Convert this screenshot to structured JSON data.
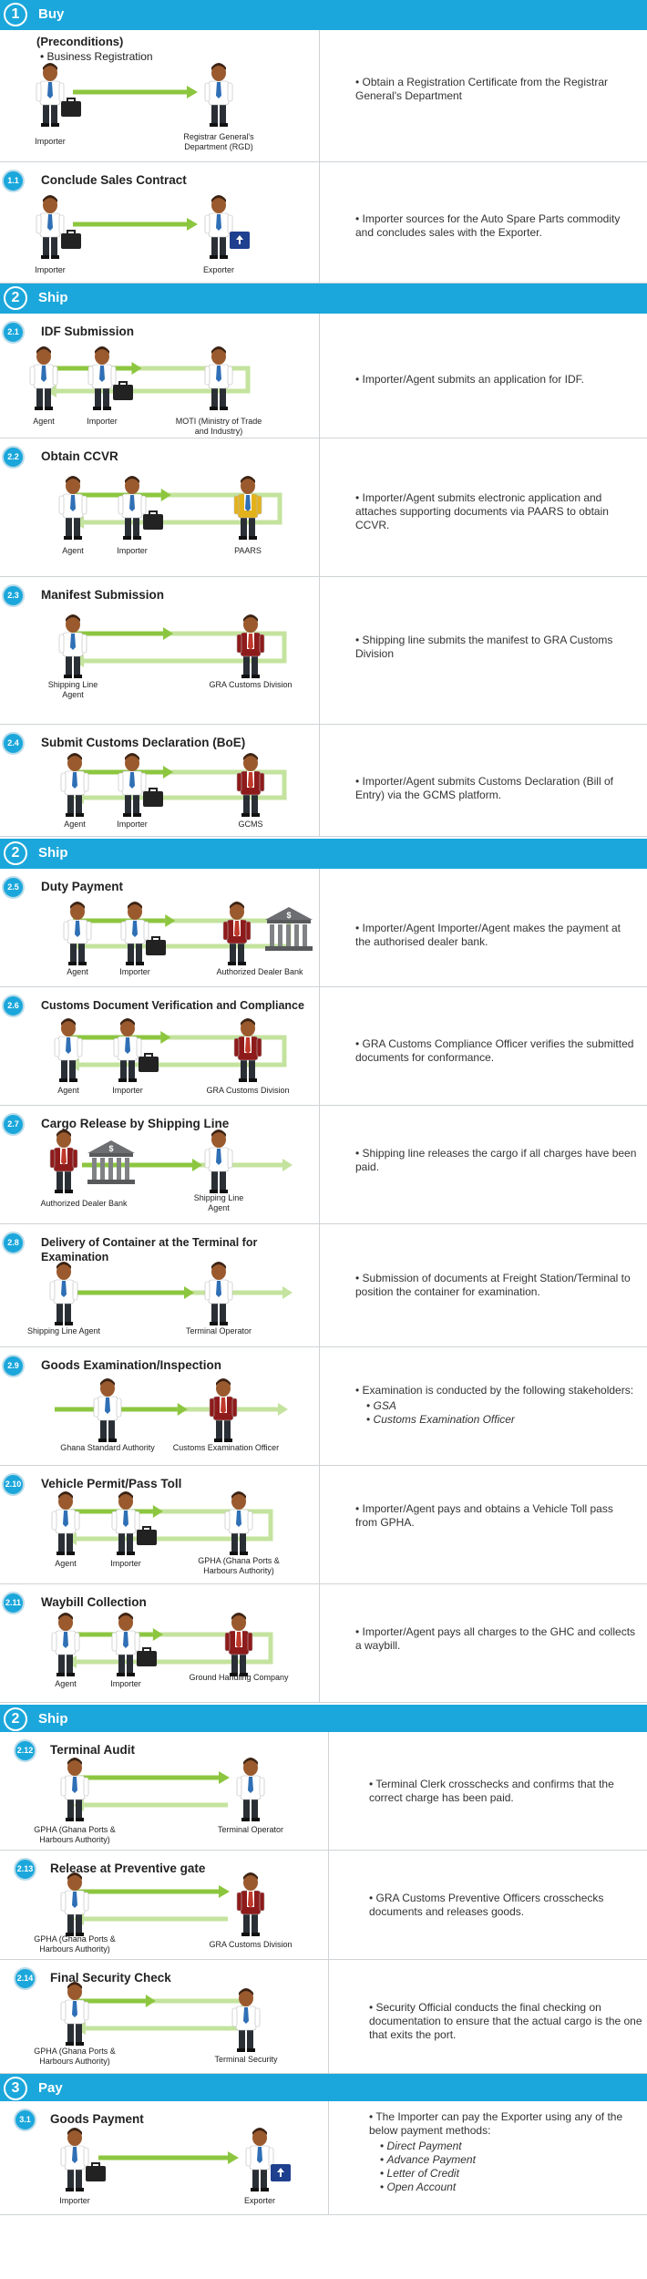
{
  "sections": {
    "buy": {
      "num": "1",
      "label": "Buy"
    },
    "ship1": {
      "num": "2",
      "label": "Ship"
    },
    "ship2": {
      "num": "2",
      "label": "Ship"
    },
    "ship3": {
      "num": "2",
      "label": "Ship"
    },
    "pay": {
      "num": "3",
      "label": "Pay"
    }
  },
  "steps": {
    "pre": {
      "title": "(Preconditions)",
      "sub": "• Business Registration",
      "left": "Importer",
      "right1": "Registrar General's",
      "right2": "Department (RGD)",
      "desc": "Obtain a Registration Certificate from the Registrar General's Department"
    },
    "s11": {
      "num": "1.1",
      "title": "Conclude Sales Contract",
      "left": "Importer",
      "right": "Exporter",
      "desc": "Importer sources for the Auto Spare Parts commodity and concludes sales with the Exporter."
    },
    "s21": {
      "num": "2.1",
      "title": "IDF Submission",
      "a": "Agent",
      "b": "Importer",
      "c1": "MOTI (Ministry of Trade",
      "c2": "and Industry)",
      "desc": "Importer/Agent submits an application for IDF."
    },
    "s22": {
      "num": "2.2",
      "title": "Obtain CCVR",
      "a": "Agent",
      "b": "Importer",
      "c": "PAARS",
      "desc": "Importer/Agent submits electronic application and attaches supporting documents via PAARS to obtain CCVR."
    },
    "s23": {
      "num": "2.3",
      "title": "Manifest Submission",
      "a1": "Shipping Line",
      "a2": "Agent",
      "c": "GRA Customs Division",
      "desc": "Shipping line submits the manifest to GRA Customs Division"
    },
    "s24": {
      "num": "2.4",
      "title": "Submit Customs Declaration (BoE)",
      "a": "Agent",
      "b": "Importer",
      "c": "GCMS",
      "desc": "Importer/Agent submits Customs Declaration (Bill of Entry) via the GCMS platform."
    },
    "s25": {
      "num": "2.5",
      "title": "Duty Payment",
      "a": "Agent",
      "b": "Importer",
      "c": "Authorized Dealer Bank",
      "desc": "Importer/Agent Importer/Agent makes the payment at the authorised dealer bank."
    },
    "s26": {
      "num": "2.6",
      "title": "Customs Document Verification and Compliance",
      "a": "Agent",
      "b": "Importer",
      "c": "GRA Customs Division",
      "desc": "GRA Customs Compliance Officer verifies the submitted documents for conformance."
    },
    "s27": {
      "num": "2.7",
      "title": "Cargo Release by Shipping Line",
      "a": "Authorized Dealer Bank",
      "c1": "Shipping Line",
      "c2": "Agent",
      "desc": "Shipping line releases the cargo if all charges have been paid."
    },
    "s28": {
      "num": "2.8",
      "title": "Delivery of Container  at the Terminal for Examination",
      "a": "Shipping Line Agent",
      "c": "Terminal Operator",
      "desc": "Submission of documents at Freight Station/Terminal to position the container for examination."
    },
    "s29": {
      "num": "2.9",
      "title": "Goods Examination/Inspection",
      "a": "Ghana Standard Authority",
      "c": "Customs Examination Officer",
      "desc": "Examination is conducted by the following stakeholders:",
      "list": [
        "GSA",
        "Customs Examination  Officer"
      ]
    },
    "s210": {
      "num": "2.10",
      "title": "Vehicle Permit/Pass Toll",
      "a": "Agent",
      "b": "Importer",
      "c1": "GPHA (Ghana Ports &",
      "c2": "Harbours Authority)",
      "desc": "Importer/Agent pays and obtains a Vehicle Toll pass from GPHA."
    },
    "s211": {
      "num": "2.11",
      "title": "Waybill Collection",
      "a": "Agent",
      "b": "Importer",
      "c": "Ground Handling Company",
      "desc": "Importer/Agent pays all charges to the GHC and collects a waybill."
    },
    "s212": {
      "num": "2.12",
      "title": "Terminal Audit",
      "a1": "GPHA (Ghana Ports &",
      "a2": "Harbours Authority)",
      "c": "Terminal Operator",
      "desc": "Terminal Clerk crosschecks and confirms that the correct charge has been paid."
    },
    "s213": {
      "num": "2.13",
      "title": "Release at Preventive gate",
      "a1": "GPHA (Ghana Ports &",
      "a2": "Harbours Authority)",
      "c": "GRA Customs Division",
      "desc": "GRA Customs Preventive Officers crosschecks documents and releases goods."
    },
    "s214": {
      "num": "2.14",
      "title": "Final Security Check",
      "a1": "GPHA (Ghana Ports &",
      "a2": "Harbours Authority)",
      "c": "Terminal Security",
      "desc": "Security Official conducts the final checking on documentation to ensure that the actual cargo is the one that exits the port."
    },
    "s31": {
      "num": "3.1",
      "title": "Goods  Payment",
      "left": "Importer",
      "right": "Exporter",
      "desc": "The Importer can pay the Exporter using any of the below payment methods:",
      "list": [
        "Direct Payment",
        "Advance Payment",
        "Letter of Credit",
        "Open Account"
      ]
    }
  },
  "bank_symbol": "$",
  "colors": {
    "band": "#1ba7db",
    "arrow": "#8cc63f",
    "arrow_light": "#c4e39e",
    "skin": "#9a5a2e",
    "hair": "#3b2314",
    "shirt": "#ffffff",
    "pants": "#2a2f36",
    "tie_blue": "#2f6fb5",
    "tie_red": "#c0392b",
    "case": "#222222"
  }
}
